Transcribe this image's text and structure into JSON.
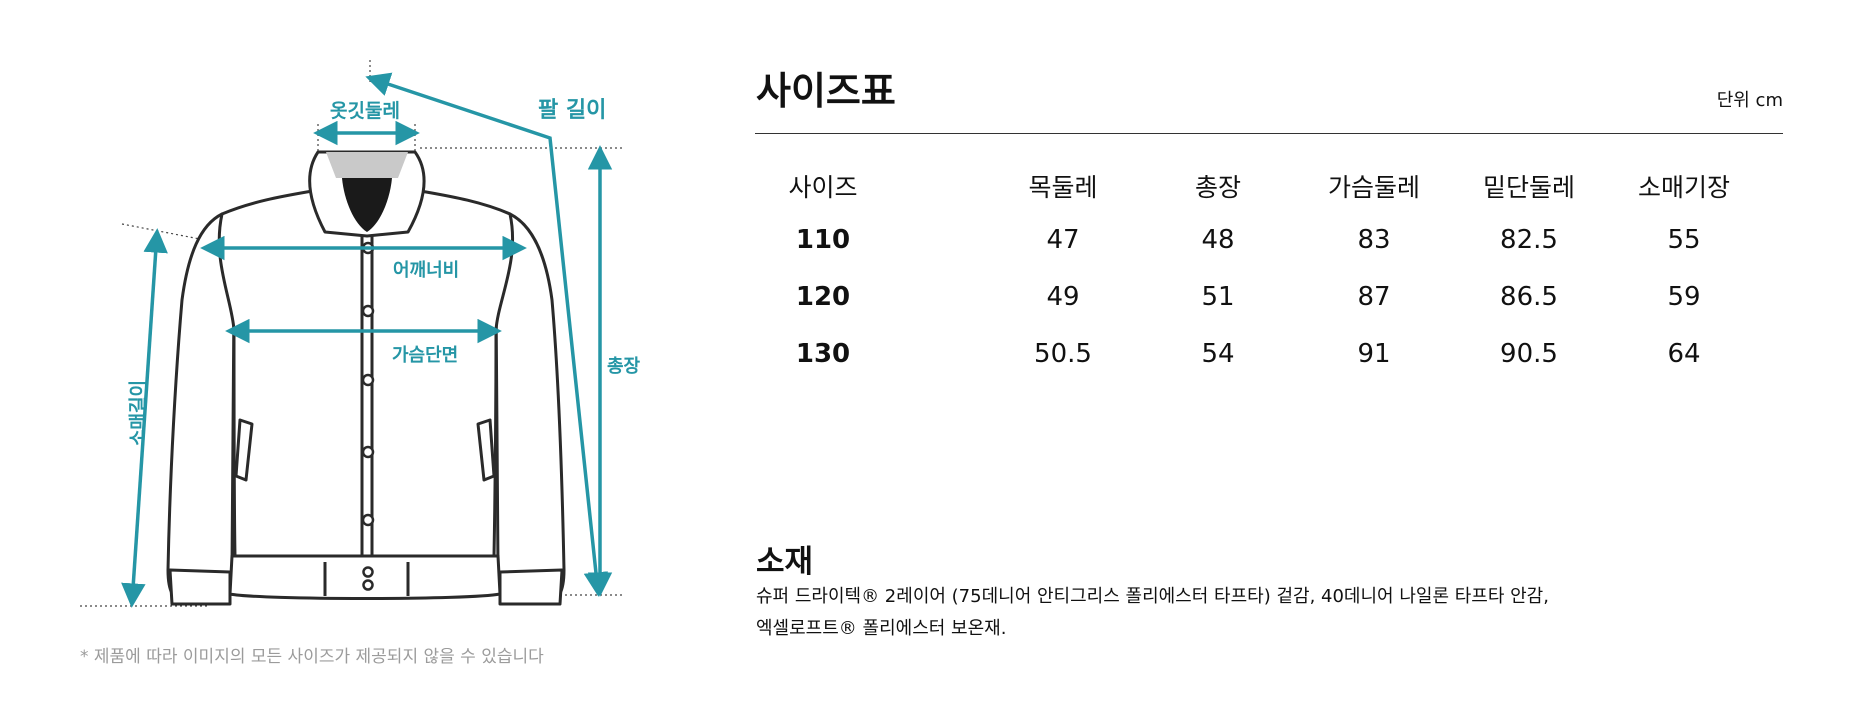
{
  "diagram": {
    "labels": {
      "collar": "옷깃둘레",
      "arm_length": "팔 길이",
      "shoulder": "어깨너비",
      "chest": "가슴단면",
      "total_length": "총장",
      "sleeve_length": "소매길이"
    },
    "disclaimer": "* 제품에 따라 이미지의 모든 사이즈가 제공되지 않을 수 있습니다",
    "accent_color": "#2596a6"
  },
  "size_chart": {
    "title": "사이즈표",
    "unit": "단위 cm",
    "headers": [
      "사이즈",
      "목둘레",
      "총장",
      "가슴둘레",
      "밑단둘레",
      "소매기장"
    ],
    "rows": [
      [
        "110",
        "47",
        "48",
        "83",
        "82.5",
        "55"
      ],
      [
        "120",
        "49",
        "51",
        "87",
        "86.5",
        "59"
      ],
      [
        "130",
        "50.5",
        "54",
        "91",
        "90.5",
        "64"
      ]
    ]
  },
  "material": {
    "title": "소재",
    "line1": "슈퍼 드라이텍® 2레이어 (75데니어 안티그리스 폴리에스터 타프타) 겉감, 40데니어 나일론 타프타 안감,",
    "line2": "엑셀로프트® 폴리에스터 보온재."
  }
}
